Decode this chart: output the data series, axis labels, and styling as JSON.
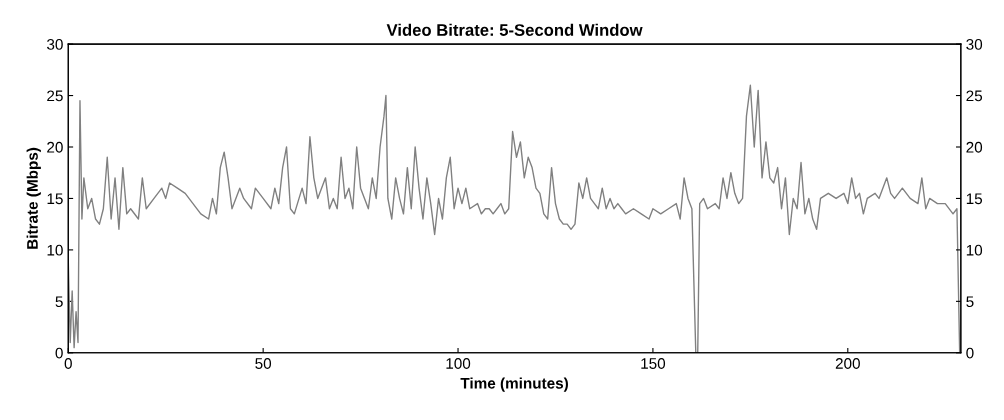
{
  "chart_data": {
    "type": "line",
    "title": "Video Bitrate: 5-Second Window",
    "xlabel": "Time (minutes)",
    "ylabel": "Bitrate (Mbps)",
    "x": [
      0,
      0.5,
      1,
      1.5,
      2,
      2.5,
      3,
      3.5,
      4,
      5,
      6,
      7,
      8,
      9,
      10,
      11,
      12,
      13,
      14,
      15,
      16,
      18,
      19,
      20,
      22,
      24,
      25,
      26,
      28,
      30,
      32,
      34,
      36,
      37,
      38,
      39,
      40,
      41,
      42,
      44,
      45,
      47,
      48,
      50,
      52,
      53,
      54,
      55,
      56,
      57,
      58,
      60,
      61,
      62,
      63,
      64,
      66,
      67,
      68,
      69,
      70,
      71,
      72,
      73,
      74,
      75,
      76,
      77,
      78,
      79,
      80,
      81,
      81.5,
      82,
      83,
      84,
      85,
      86,
      87,
      88,
      89,
      90,
      91,
      92,
      93,
      94,
      95,
      96,
      97,
      98,
      99,
      100,
      101,
      102,
      103,
      105,
      106,
      107,
      108,
      109,
      110,
      111,
      112,
      113,
      114,
      115,
      116,
      117,
      118,
      119,
      120,
      121,
      122,
      123,
      124,
      125,
      126,
      127,
      128,
      129,
      130,
      131,
      132,
      133,
      134,
      135,
      136,
      137,
      138,
      139,
      140,
      141,
      142,
      143,
      145,
      147,
      149,
      150,
      152,
      154,
      156,
      157,
      158,
      159,
      160,
      161,
      161.5,
      162,
      163,
      164,
      166,
      167,
      168,
      169,
      170,
      171,
      172,
      173,
      174,
      175,
      176,
      177,
      178,
      179,
      180,
      181,
      182,
      183,
      184,
      185,
      186,
      187,
      188,
      189,
      190,
      191,
      192,
      193,
      195,
      197,
      199,
      200,
      201,
      202,
      203,
      204,
      205,
      207,
      208,
      210,
      211,
      212,
      214,
      216,
      218,
      219,
      220,
      221,
      223,
      225,
      227,
      228,
      228.7
    ],
    "series": [
      {
        "color": "#808080",
        "values": [
          9,
          1,
          6,
          0.5,
          4,
          1,
          24.5,
          13,
          17,
          14,
          15,
          13,
          12.5,
          14,
          19,
          13,
          17,
          12,
          18,
          13.5,
          14,
          13,
          17,
          14,
          15,
          16,
          15,
          16.5,
          16,
          15.5,
          14.5,
          13.5,
          13,
          15,
          13.5,
          18,
          19.5,
          17,
          14,
          16,
          15,
          14,
          16,
          15,
          14,
          16,
          14.5,
          18,
          20,
          14,
          13.5,
          16,
          14.5,
          21,
          17,
          15,
          17,
          14,
          15,
          14,
          19,
          15,
          16,
          14,
          20,
          16,
          15,
          14,
          17,
          15,
          20,
          23,
          25,
          15,
          13,
          17,
          15,
          13.5,
          18,
          14,
          20,
          16,
          13,
          17,
          14.5,
          11.5,
          15,
          13,
          17,
          19,
          14,
          16,
          14.5,
          16,
          14,
          14.5,
          13.5,
          14,
          14,
          13.5,
          14,
          14.5,
          13.5,
          14,
          21.5,
          19,
          20.5,
          17,
          19,
          18,
          16,
          15.5,
          13.5,
          13,
          18,
          14.5,
          13,
          12.5,
          12.5,
          12,
          12.5,
          16.5,
          15,
          17,
          15,
          14.5,
          14,
          16,
          14,
          15,
          14,
          14.5,
          14,
          13.5,
          14,
          13.5,
          13,
          14,
          13.5,
          14,
          14.5,
          13,
          17,
          15,
          14,
          0,
          0,
          14.5,
          15,
          14,
          14.5,
          14,
          17,
          15,
          17.5,
          15.5,
          14.5,
          15,
          23,
          26,
          20,
          25.5,
          17,
          20.5,
          17,
          16.5,
          18,
          14,
          17,
          11.5,
          15,
          14,
          18.5,
          13.5,
          15,
          13,
          12,
          15,
          15.5,
          15,
          15.5,
          14.5,
          17,
          15,
          15.5,
          13.5,
          15,
          15.5,
          15,
          17,
          15.5,
          15,
          16,
          15,
          14.5,
          17,
          14,
          15,
          14.5,
          14.5,
          13.5,
          14,
          0
        ]
      }
    ],
    "xlim": [
      0,
      229
    ],
    "xticks": [
      0,
      50,
      100,
      150,
      200
    ],
    "ylim": [
      0,
      30
    ],
    "yticks": [
      0,
      5,
      10,
      15,
      20,
      25,
      30
    ],
    "y2lim": [
      0,
      30
    ],
    "y2ticks": [
      0,
      5,
      10,
      15,
      20,
      25,
      30
    ],
    "line_style": "solid",
    "marker": "none"
  }
}
